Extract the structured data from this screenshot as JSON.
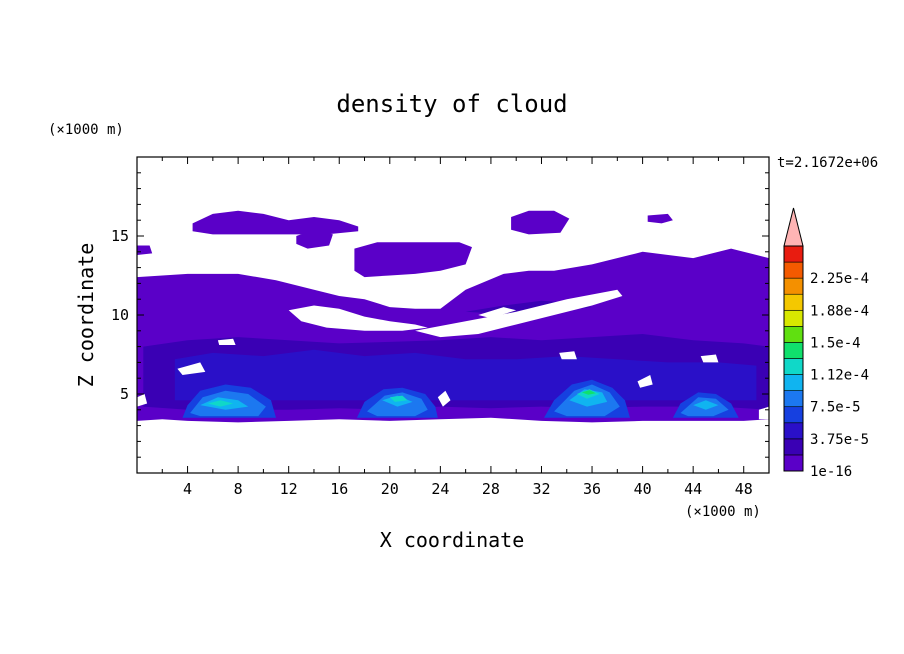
{
  "chart_data": {
    "type": "heatmap",
    "title": "density of cloud",
    "xlabel": "X coordinate",
    "ylabel": "Z coordinate",
    "x_unit": "(×1000 m)",
    "y_unit": "(×1000 m)",
    "time_label": "t=2.1672e+06",
    "xlim": [
      0,
      50
    ],
    "ylim": [
      0,
      20
    ],
    "x_ticks": [
      "4",
      "8",
      "12",
      "16",
      "20",
      "24",
      "28",
      "32",
      "36",
      "40",
      "44",
      "48"
    ],
    "y_ticks": [
      "5",
      "10",
      "15"
    ],
    "colorbar": {
      "labels": [
        "1e-16",
        "3.75e-5",
        "7.5e-5",
        "1.12e-4",
        "1.5e-4",
        "1.88e-4",
        "2.25e-4"
      ],
      "colors": [
        "#5a00c8",
        "#3a00b4",
        "#2a10c8",
        "#1640e0",
        "#1c78f0",
        "#10b4f0",
        "#10d8c8",
        "#10e06c",
        "#60e010",
        "#d8e800",
        "#f4c800",
        "#f49000",
        "#f45a00",
        "#e81c10",
        "#ffb4b4"
      ]
    },
    "regions": [
      {
        "level": 0,
        "poly": [
          [
            0,
            3.3
          ],
          [
            2,
            3.4
          ],
          [
            4,
            3.3
          ],
          [
            8,
            3.2
          ],
          [
            12,
            3.3
          ],
          [
            16,
            3.4
          ],
          [
            20,
            3.3
          ],
          [
            24,
            3.4
          ],
          [
            28,
            3.5
          ],
          [
            32,
            3.3
          ],
          [
            36,
            3.2
          ],
          [
            40,
            3.3
          ],
          [
            44,
            3.3
          ],
          [
            48,
            3.3
          ],
          [
            50,
            3.4
          ],
          [
            50,
            13.6
          ],
          [
            47,
            14.2
          ],
          [
            44,
            13.6
          ],
          [
            40,
            14.0
          ],
          [
            36,
            13.2
          ],
          [
            33,
            12.8
          ],
          [
            31,
            12.8
          ],
          [
            29,
            12.6
          ],
          [
            26,
            11.6
          ],
          [
            24,
            10.4
          ],
          [
            22,
            10.4
          ],
          [
            20,
            10.5
          ],
          [
            18,
            11.0
          ],
          [
            16,
            11.2
          ],
          [
            14,
            11.6
          ],
          [
            11,
            12.2
          ],
          [
            8,
            12.6
          ],
          [
            4,
            12.6
          ],
          [
            0,
            12.4
          ]
        ]
      },
      {
        "level": 0,
        "poly": [
          [
            4.4,
            15.8
          ],
          [
            6,
            16.4
          ],
          [
            8,
            16.6
          ],
          [
            10,
            16.4
          ],
          [
            12,
            16.0
          ],
          [
            14,
            16.2
          ],
          [
            16,
            16.0
          ],
          [
            17.5,
            15.6
          ],
          [
            17.5,
            15.3
          ],
          [
            15,
            15.1
          ],
          [
            12,
            15.1
          ],
          [
            9,
            15.1
          ],
          [
            6,
            15.1
          ],
          [
            4.4,
            15.3
          ]
        ]
      },
      {
        "level": 0,
        "poly": [
          [
            17.2,
            14.2
          ],
          [
            19,
            14.6
          ],
          [
            22,
            14.6
          ],
          [
            25.5,
            14.6
          ],
          [
            26.5,
            14.3
          ],
          [
            26,
            13.2
          ],
          [
            24,
            12.8
          ],
          [
            22,
            12.6
          ],
          [
            20,
            12.5
          ],
          [
            18,
            12.4
          ],
          [
            17.2,
            12.8
          ]
        ]
      },
      {
        "level": 0,
        "poly": [
          [
            12.6,
            15.0
          ],
          [
            14,
            15.4
          ],
          [
            15.5,
            15.1
          ],
          [
            15.2,
            14.4
          ],
          [
            13.5,
            14.2
          ],
          [
            12.6,
            14.5
          ]
        ]
      },
      {
        "level": 0,
        "poly": [
          [
            29.6,
            16.2
          ],
          [
            31,
            16.6
          ],
          [
            33,
            16.6
          ],
          [
            34.2,
            16.1
          ],
          [
            33.5,
            15.2
          ],
          [
            31,
            15.1
          ],
          [
            29.6,
            15.4
          ]
        ]
      },
      {
        "level": 0,
        "poly": [
          [
            40.4,
            16.3
          ],
          [
            42,
            16.4
          ],
          [
            42.4,
            16.0
          ],
          [
            41.5,
            15.8
          ],
          [
            40.4,
            15.9
          ]
        ]
      },
      {
        "level": 0,
        "poly": [
          [
            0,
            14.4
          ],
          [
            1,
            14.4
          ],
          [
            1.2,
            13.9
          ],
          [
            0,
            13.8
          ]
        ]
      },
      {
        "level": 1,
        "poly": [
          [
            0.5,
            8.0
          ],
          [
            4,
            8.4
          ],
          [
            8,
            8.6
          ],
          [
            12,
            8.4
          ],
          [
            16,
            8.2
          ],
          [
            20,
            8.3
          ],
          [
            24,
            8.4
          ],
          [
            28,
            8.6
          ],
          [
            32,
            8.4
          ],
          [
            36,
            8.6
          ],
          [
            40,
            8.8
          ],
          [
            44,
            8.4
          ],
          [
            48,
            8.2
          ],
          [
            50,
            8.0
          ],
          [
            50,
            4.0
          ],
          [
            46,
            4.2
          ],
          [
            40,
            4.2
          ],
          [
            36,
            4.1
          ],
          [
            32,
            4.2
          ],
          [
            28,
            4.1
          ],
          [
            24,
            4.2
          ],
          [
            20,
            4.0
          ],
          [
            16,
            4.1
          ],
          [
            12,
            4.0
          ],
          [
            8,
            4.0
          ],
          [
            4,
            4.0
          ],
          [
            0.5,
            4.2
          ]
        ]
      },
      {
        "level": 1,
        "poly": [
          [
            26,
            10.2
          ],
          [
            29,
            10.6
          ],
          [
            32,
            10.9
          ],
          [
            34,
            10.8
          ],
          [
            36,
            10.5
          ],
          [
            33,
            10.2
          ],
          [
            30,
            10.0
          ]
        ]
      },
      {
        "level": 2,
        "poly": [
          [
            3,
            7.2
          ],
          [
            6,
            7.6
          ],
          [
            10,
            7.4
          ],
          [
            14,
            7.8
          ],
          [
            18,
            7.4
          ],
          [
            22,
            7.6
          ],
          [
            26,
            7.2
          ],
          [
            30,
            7.2
          ],
          [
            34,
            7.4
          ],
          [
            38,
            7.2
          ],
          [
            42,
            7.0
          ],
          [
            46,
            7.0
          ],
          [
            49,
            6.8
          ],
          [
            49,
            4.6
          ],
          [
            3,
            4.6
          ]
        ]
      },
      {
        "level": 3,
        "poly": [
          [
            3.6,
            3.5
          ],
          [
            4,
            4.3
          ],
          [
            5,
            5.2
          ],
          [
            7,
            5.6
          ],
          [
            9,
            5.4
          ],
          [
            10.6,
            4.6
          ],
          [
            11,
            3.5
          ]
        ]
      },
      {
        "level": 3,
        "poly": [
          [
            17.4,
            3.5
          ],
          [
            18,
            4.5
          ],
          [
            19.5,
            5.3
          ],
          [
            21,
            5.4
          ],
          [
            22.8,
            5.0
          ],
          [
            23.6,
            4.2
          ],
          [
            23.8,
            3.5
          ]
        ]
      },
      {
        "level": 3,
        "poly": [
          [
            32.2,
            3.5
          ],
          [
            33,
            4.6
          ],
          [
            34.4,
            5.6
          ],
          [
            36,
            5.9
          ],
          [
            37.6,
            5.4
          ],
          [
            38.6,
            4.6
          ],
          [
            39,
            3.5
          ]
        ]
      },
      {
        "level": 3,
        "poly": [
          [
            42.4,
            3.5
          ],
          [
            43,
            4.4
          ],
          [
            44.4,
            5.1
          ],
          [
            45.8,
            5.0
          ],
          [
            47,
            4.4
          ],
          [
            47.6,
            3.5
          ]
        ]
      },
      {
        "level": 4,
        "poly": [
          [
            4.2,
            3.8
          ],
          [
            5.2,
            4.8
          ],
          [
            7,
            5.2
          ],
          [
            8.8,
            5.0
          ],
          [
            10.2,
            4.2
          ],
          [
            9.6,
            3.6
          ],
          [
            5,
            3.6
          ]
        ]
      },
      {
        "level": 4,
        "poly": [
          [
            18.2,
            3.9
          ],
          [
            19.6,
            4.9
          ],
          [
            21,
            5.1
          ],
          [
            22.5,
            4.7
          ],
          [
            23,
            4.0
          ],
          [
            22,
            3.6
          ],
          [
            19,
            3.6
          ]
        ]
      },
      {
        "level": 4,
        "poly": [
          [
            33,
            3.9
          ],
          [
            34.6,
            5.2
          ],
          [
            36,
            5.6
          ],
          [
            37.4,
            5.1
          ],
          [
            38.2,
            4.2
          ],
          [
            37,
            3.6
          ],
          [
            34,
            3.6
          ]
        ]
      },
      {
        "level": 4,
        "poly": [
          [
            43,
            3.8
          ],
          [
            44.4,
            4.8
          ],
          [
            45.8,
            4.7
          ],
          [
            46.8,
            4.0
          ],
          [
            45.6,
            3.6
          ],
          [
            43.6,
            3.6
          ]
        ]
      },
      {
        "level": 5,
        "poly": [
          [
            5,
            4.3
          ],
          [
            6.4,
            4.8
          ],
          [
            8,
            4.6
          ],
          [
            8.8,
            4.2
          ],
          [
            7,
            4.0
          ]
        ]
      },
      {
        "level": 5,
        "poly": [
          [
            19.4,
            4.6
          ],
          [
            20.6,
            4.9
          ],
          [
            21.8,
            4.5
          ],
          [
            20.6,
            4.2
          ]
        ]
      },
      {
        "level": 5,
        "poly": [
          [
            34.2,
            4.6
          ],
          [
            35.4,
            5.3
          ],
          [
            36.8,
            5.1
          ],
          [
            37.2,
            4.5
          ],
          [
            35.6,
            4.2
          ]
        ]
      },
      {
        "level": 5,
        "poly": [
          [
            44,
            4.3
          ],
          [
            45,
            4.6
          ],
          [
            46,
            4.3
          ],
          [
            45,
            4.0
          ]
        ]
      },
      {
        "level": 6,
        "poly": [
          [
            5.6,
            4.4
          ],
          [
            6.6,
            4.6
          ],
          [
            7.6,
            4.4
          ],
          [
            6.6,
            4.2
          ]
        ]
      },
      {
        "level": 6,
        "poly": [
          [
            20,
            4.8
          ],
          [
            21,
            4.9
          ],
          [
            21.4,
            4.6
          ],
          [
            20.4,
            4.5
          ]
        ]
      },
      {
        "level": 6,
        "poly": [
          [
            34.8,
            5.0
          ],
          [
            35.8,
            5.3
          ],
          [
            36.6,
            5.0
          ],
          [
            35.6,
            4.7
          ]
        ]
      },
      {
        "level": 7,
        "poly": [
          [
            35.2,
            5.1
          ],
          [
            35.8,
            5.25
          ],
          [
            36.3,
            5.05
          ],
          [
            35.7,
            4.95
          ]
        ]
      },
      {
        "level": -1,
        "poly": [
          [
            12,
            10.3
          ],
          [
            14,
            10.6
          ],
          [
            16,
            10.4
          ],
          [
            18,
            9.9
          ],
          [
            20,
            9.6
          ],
          [
            22,
            9.4
          ],
          [
            23,
            9.2
          ],
          [
            21,
            9.0
          ],
          [
            18,
            9.0
          ],
          [
            15,
            9.2
          ],
          [
            13,
            9.6
          ]
        ]
      },
      {
        "level": -1,
        "poly": [
          [
            22,
            9.0
          ],
          [
            26,
            9.6
          ],
          [
            30,
            10.2
          ],
          [
            34,
            11.0
          ],
          [
            38,
            11.6
          ],
          [
            38.4,
            11.2
          ],
          [
            36,
            10.6
          ],
          [
            33,
            10.0
          ],
          [
            30,
            9.4
          ],
          [
            27,
            8.8
          ],
          [
            24,
            8.6
          ]
        ]
      },
      {
        "level": -1,
        "poly": [
          [
            27,
            10.0
          ],
          [
            29,
            10.5
          ],
          [
            30,
            10.3
          ],
          [
            28,
            9.8
          ]
        ]
      },
      {
        "level": -1,
        "poly": [
          [
            6.4,
            8.4
          ],
          [
            7.6,
            8.5
          ],
          [
            7.8,
            8.1
          ],
          [
            6.5,
            8.1
          ]
        ]
      },
      {
        "level": -1,
        "poly": [
          [
            33.4,
            7.6
          ],
          [
            34.6,
            7.7
          ],
          [
            34.8,
            7.2
          ],
          [
            33.6,
            7.2
          ]
        ]
      },
      {
        "level": -1,
        "poly": [
          [
            44.6,
            7.4
          ],
          [
            45.8,
            7.5
          ],
          [
            46,
            7.0
          ],
          [
            44.8,
            7.0
          ]
        ]
      },
      {
        "level": -1,
        "poly": [
          [
            39.6,
            5.8
          ],
          [
            40.6,
            6.2
          ],
          [
            40.8,
            5.6
          ],
          [
            39.8,
            5.4
          ]
        ]
      },
      {
        "level": -1,
        "poly": [
          [
            3.2,
            6.6
          ],
          [
            5,
            7.0
          ],
          [
            5.4,
            6.4
          ],
          [
            3.6,
            6.2
          ]
        ]
      },
      {
        "level": -1,
        "poly": [
          [
            0,
            4.8
          ],
          [
            0.6,
            5.0
          ],
          [
            0.8,
            4.4
          ],
          [
            0,
            4.2
          ]
        ]
      },
      {
        "level": -1,
        "poly": [
          [
            49.2,
            4.0
          ],
          [
            50,
            4.2
          ],
          [
            50,
            3.4
          ],
          [
            49.2,
            3.4
          ]
        ]
      },
      {
        "level": -1,
        "poly": [
          [
            23.8,
            4.8
          ],
          [
            24.4,
            5.2
          ],
          [
            24.8,
            4.6
          ],
          [
            24.2,
            4.2
          ]
        ]
      }
    ]
  }
}
